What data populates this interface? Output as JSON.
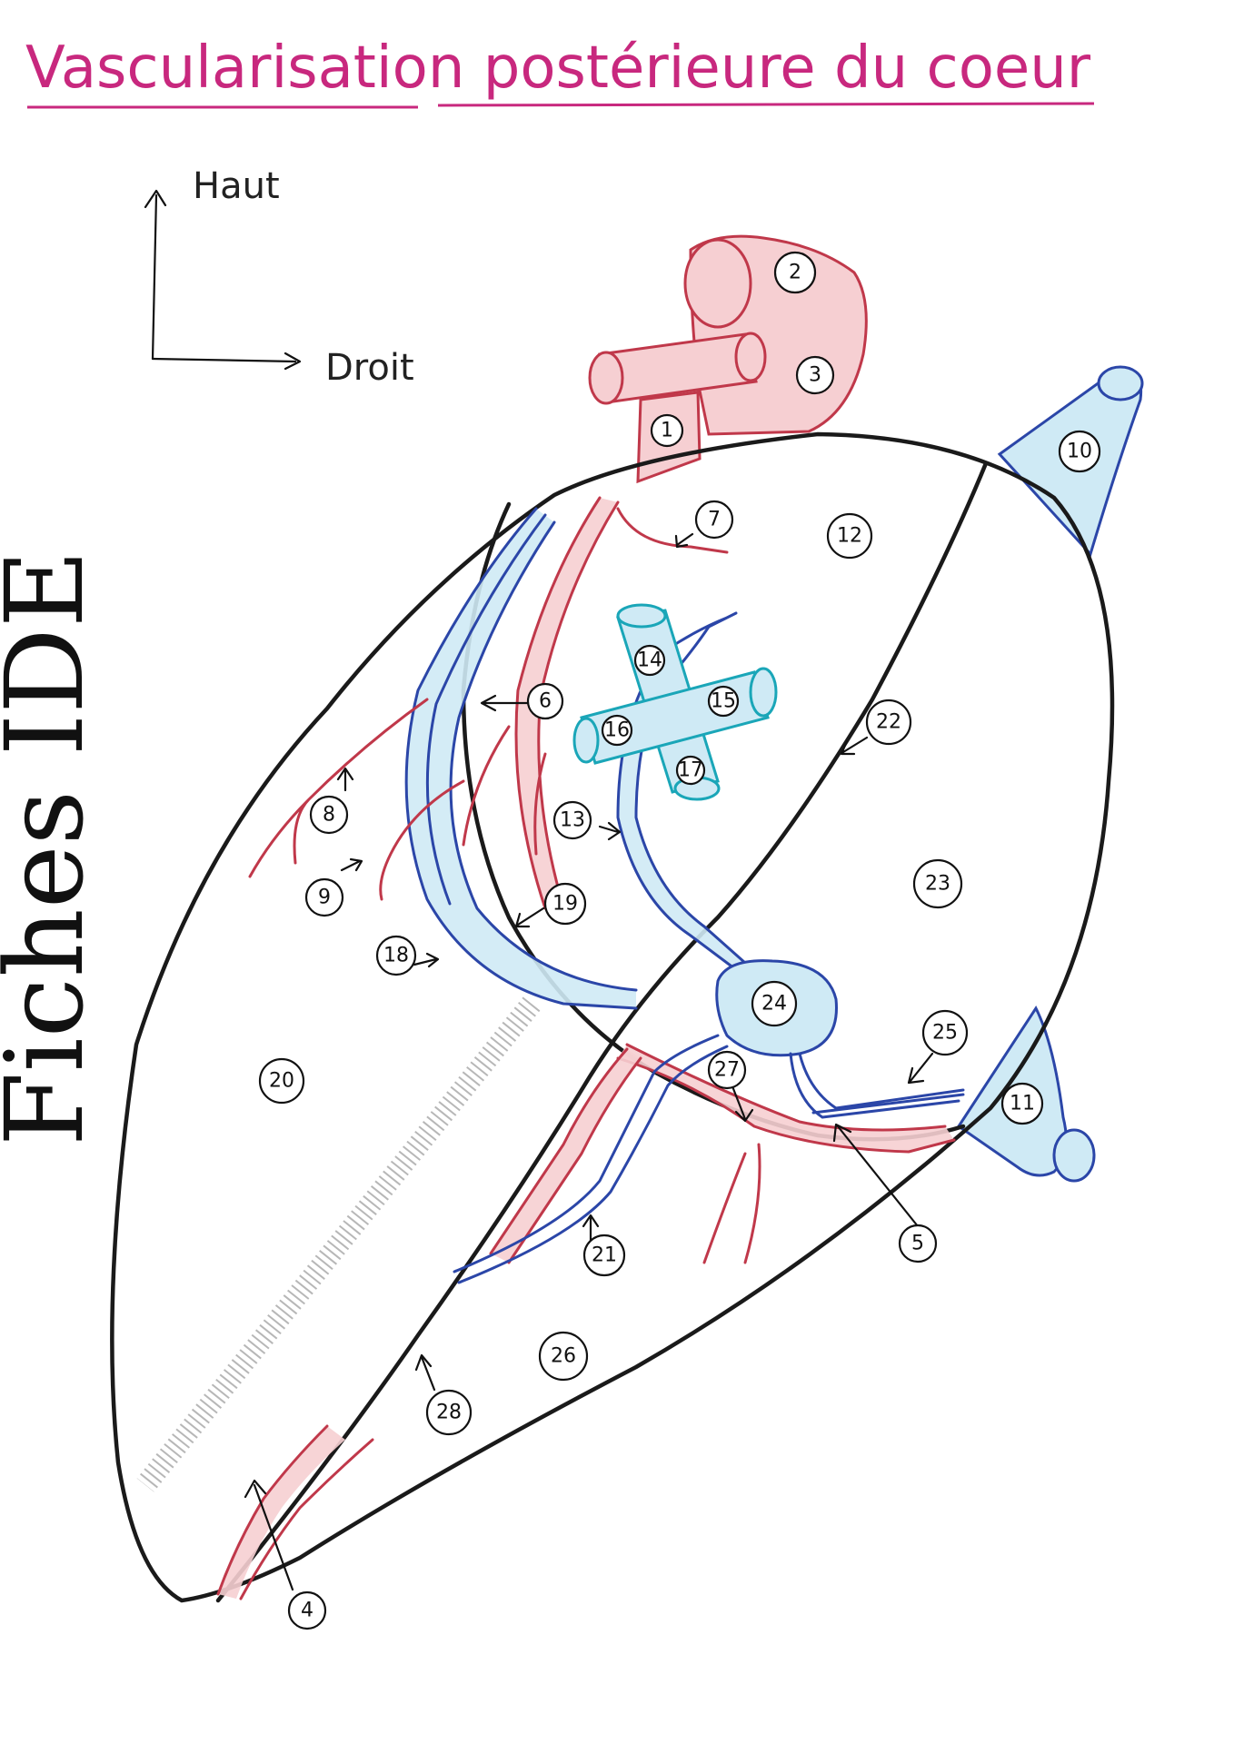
{
  "title": "Vascularisation postérieure du coeur",
  "orientation": {
    "up_label": "Haut",
    "right_label": "Droit"
  },
  "watermark": "Fiches IDE",
  "colors": {
    "title": "#c8287e",
    "artery_stroke": "#c0384a",
    "artery_fill": "#f6cfd2",
    "vein_stroke": "#2b46a8",
    "vein_fill": "#cfeaf5",
    "pulmonary_vein_stroke": "#1aa6b8",
    "outline": "#1a1a1a"
  },
  "markers": [
    "1",
    "2",
    "3",
    "4",
    "5",
    "6",
    "7",
    "8",
    "9",
    "10",
    "11",
    "12",
    "13",
    "14",
    "15",
    "16",
    "17",
    "18",
    "19",
    "20",
    "21",
    "22",
    "23",
    "24",
    "25",
    "26",
    "27",
    "28"
  ]
}
